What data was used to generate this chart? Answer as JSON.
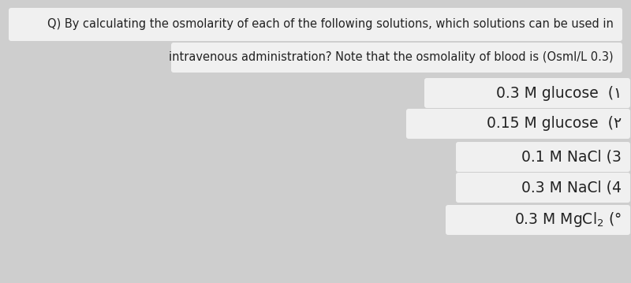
{
  "bg_color": "#cecece",
  "box_facecolor": "#f0f0f0",
  "text_color": "#222222",
  "line1": "Q) By calculating the osmolarity of each of the following solutions, which solutions can be used in",
  "line2": "intravenous administration? Note that the osmolality of blood is (Osml/L 0.3)",
  "items_plain": [
    "0.3 M glucose  (١",
    "0.15 M glucose  (٢",
    "0.1 M NaCl (3",
    "0.3 M NaCl (4"
  ],
  "item_mgcl2": "0.3 M MgCl$_2$ (°",
  "font_size_main": 10.5,
  "font_size_items": 13.5
}
